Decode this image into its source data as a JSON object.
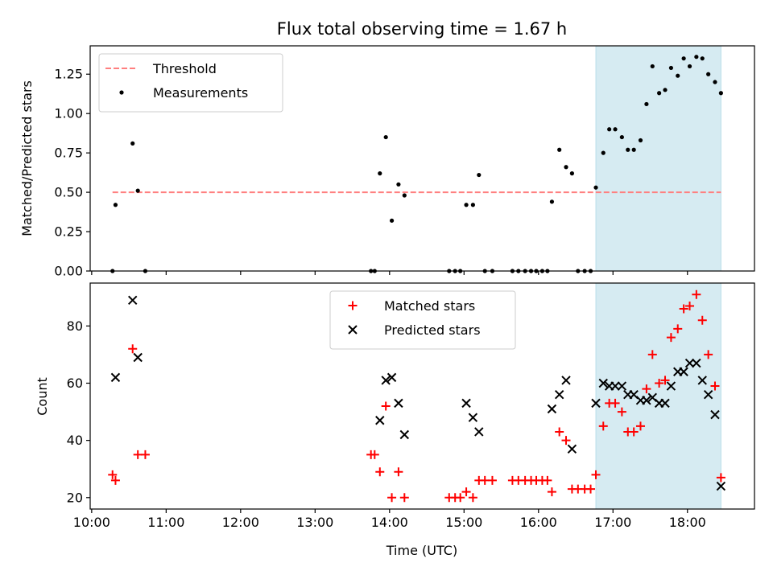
{
  "chart_data": {
    "title": "Flux total observing time = 1.67 h",
    "x_label": "Time (UTC)",
    "x_ticks": [
      "10:00",
      "11:00",
      "12:00",
      "13:00",
      "14:00",
      "15:00",
      "16:00",
      "17:00",
      "18:00"
    ],
    "x_range_hours": [
      9.98,
      18.9
    ],
    "highlight_span_hours": [
      16.77,
      18.45
    ],
    "panels": [
      {
        "type": "scatter",
        "y_label": "Matched/Predicted stars",
        "ylim": [
          0,
          1.43
        ],
        "y_ticks": [
          "0.00",
          "0.25",
          "0.50",
          "0.75",
          "1.00",
          "1.25"
        ],
        "legend_position": "upper left",
        "threshold": {
          "name": "Threshold",
          "value": 0.5,
          "x_from": 10.28,
          "x_to": 18.45,
          "color": "#ff7f7f"
        },
        "series": [
          {
            "name": "Measurements",
            "color": "#000000",
            "marker": "dot",
            "points": [
              [
                10.28,
                0.0
              ],
              [
                10.32,
                0.42
              ],
              [
                10.55,
                0.81
              ],
              [
                10.62,
                0.51
              ],
              [
                10.72,
                0.0
              ],
              [
                13.75,
                0.0
              ],
              [
                13.8,
                0.0
              ],
              [
                13.87,
                0.62
              ],
              [
                13.95,
                0.85
              ],
              [
                14.03,
                0.32
              ],
              [
                14.12,
                0.55
              ],
              [
                14.2,
                0.48
              ],
              [
                14.8,
                0.0
              ],
              [
                14.88,
                0.0
              ],
              [
                14.95,
                0.0
              ],
              [
                15.03,
                0.42
              ],
              [
                15.12,
                0.42
              ],
              [
                15.2,
                0.61
              ],
              [
                15.28,
                0.0
              ],
              [
                15.38,
                0.0
              ],
              [
                15.65,
                0.0
              ],
              [
                15.73,
                0.0
              ],
              [
                15.82,
                0.0
              ],
              [
                15.9,
                0.0
              ],
              [
                15.97,
                0.0
              ],
              [
                16.05,
                0.0
              ],
              [
                16.12,
                0.0
              ],
              [
                16.18,
                0.44
              ],
              [
                16.28,
                0.77
              ],
              [
                16.37,
                0.66
              ],
              [
                16.45,
                0.62
              ],
              [
                16.53,
                0.0
              ],
              [
                16.62,
                0.0
              ],
              [
                16.7,
                0.0
              ],
              [
                16.77,
                0.53
              ],
              [
                16.87,
                0.75
              ],
              [
                16.95,
                0.9
              ],
              [
                17.03,
                0.9
              ],
              [
                17.12,
                0.85
              ],
              [
                17.2,
                0.77
              ],
              [
                17.28,
                0.77
              ],
              [
                17.37,
                0.83
              ],
              [
                17.45,
                1.06
              ],
              [
                17.53,
                1.3
              ],
              [
                17.62,
                1.13
              ],
              [
                17.7,
                1.15
              ],
              [
                17.78,
                1.29
              ],
              [
                17.87,
                1.24
              ],
              [
                17.95,
                1.35
              ],
              [
                18.03,
                1.3
              ],
              [
                18.12,
                1.36
              ],
              [
                18.2,
                1.35
              ],
              [
                18.28,
                1.25
              ],
              [
                18.37,
                1.2
              ],
              [
                18.45,
                1.13
              ]
            ]
          }
        ]
      },
      {
        "type": "scatter",
        "y_label": "Count",
        "ylim": [
          16,
          95
        ],
        "y_ticks": [
          "20",
          "40",
          "60",
          "80"
        ],
        "legend_position": "upper center",
        "series": [
          {
            "name": "Matched stars",
            "color": "#ff0000",
            "marker": "plus",
            "points": [
              [
                10.28,
                28
              ],
              [
                10.32,
                26
              ],
              [
                10.55,
                72
              ],
              [
                10.62,
                35
              ],
              [
                10.72,
                35
              ],
              [
                13.75,
                35
              ],
              [
                13.8,
                35
              ],
              [
                13.87,
                29
              ],
              [
                13.95,
                52
              ],
              [
                14.03,
                20
              ],
              [
                14.12,
                29
              ],
              [
                14.2,
                20
              ],
              [
                14.8,
                20
              ],
              [
                14.88,
                20
              ],
              [
                14.95,
                20
              ],
              [
                15.03,
                22
              ],
              [
                15.12,
                20
              ],
              [
                15.2,
                26
              ],
              [
                15.28,
                26
              ],
              [
                15.38,
                26
              ],
              [
                15.65,
                26
              ],
              [
                15.73,
                26
              ],
              [
                15.82,
                26
              ],
              [
                15.9,
                26
              ],
              [
                15.97,
                26
              ],
              [
                16.05,
                26
              ],
              [
                16.12,
                26
              ],
              [
                16.18,
                22
              ],
              [
                16.28,
                43
              ],
              [
                16.37,
                40
              ],
              [
                16.45,
                23
              ],
              [
                16.53,
                23
              ],
              [
                16.62,
                23
              ],
              [
                16.7,
                23
              ],
              [
                16.77,
                28
              ],
              [
                16.87,
                45
              ],
              [
                16.95,
                53
              ],
              [
                17.03,
                53
              ],
              [
                17.12,
                50
              ],
              [
                17.2,
                43
              ],
              [
                17.28,
                43
              ],
              [
                17.37,
                45
              ],
              [
                17.45,
                58
              ],
              [
                17.53,
                70
              ],
              [
                17.62,
                60
              ],
              [
                17.7,
                61
              ],
              [
                17.78,
                76
              ],
              [
                17.87,
                79
              ],
              [
                17.95,
                86
              ],
              [
                18.03,
                87
              ],
              [
                18.12,
                91
              ],
              [
                18.2,
                82
              ],
              [
                18.28,
                70
              ],
              [
                18.37,
                59
              ],
              [
                18.45,
                27
              ]
            ]
          },
          {
            "name": "Predicted stars",
            "color": "#000000",
            "marker": "x",
            "points": [
              [
                10.32,
                62
              ],
              [
                10.55,
                89
              ],
              [
                10.62,
                69
              ],
              [
                13.87,
                47
              ],
              [
                13.95,
                61
              ],
              [
                14.03,
                62
              ],
              [
                14.12,
                53
              ],
              [
                14.2,
                42
              ],
              [
                15.03,
                53
              ],
              [
                15.12,
                48
              ],
              [
                15.2,
                43
              ],
              [
                16.18,
                51
              ],
              [
                16.28,
                56
              ],
              [
                16.37,
                61
              ],
              [
                16.45,
                37
              ],
              [
                16.77,
                53
              ],
              [
                16.87,
                60
              ],
              [
                16.95,
                59
              ],
              [
                17.03,
                59
              ],
              [
                17.12,
                59
              ],
              [
                17.2,
                56
              ],
              [
                17.28,
                56
              ],
              [
                17.37,
                54
              ],
              [
                17.45,
                54
              ],
              [
                17.53,
                55
              ],
              [
                17.62,
                53
              ],
              [
                17.7,
                53
              ],
              [
                17.78,
                59
              ],
              [
                17.87,
                64
              ],
              [
                17.95,
                64
              ],
              [
                18.03,
                67
              ],
              [
                18.12,
                67
              ],
              [
                18.2,
                61
              ],
              [
                18.28,
                56
              ],
              [
                18.37,
                49
              ],
              [
                18.45,
                24
              ]
            ]
          }
        ]
      }
    ]
  }
}
